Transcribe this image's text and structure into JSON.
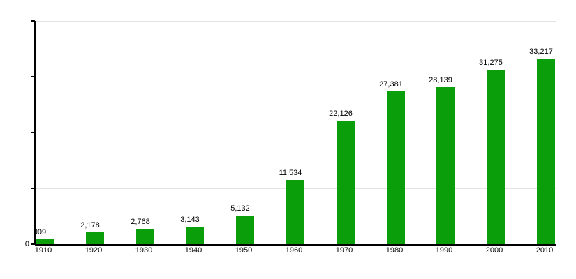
{
  "chart_data": {
    "type": "bar",
    "title": "",
    "categories": [
      "1910",
      "1920",
      "1930",
      "1940",
      "1950",
      "1960",
      "1970",
      "1980",
      "1990",
      "2000",
      "2010"
    ],
    "values": [
      909,
      2178,
      2768,
      3143,
      5132,
      11534,
      22126,
      27381,
      28139,
      31275,
      33217
    ],
    "value_labels": [
      "909",
      "2,178",
      "2,768",
      "3,143",
      "5,132",
      "11,534",
      "22,126",
      "27,381",
      "28,139",
      "31,275",
      "33,217"
    ],
    "xlabel": "",
    "ylabel": "",
    "ylim": [
      0,
      40000
    ],
    "y_zero_label": "0",
    "gridline_values": [
      10000,
      20000,
      30000,
      40000
    ],
    "grid": "horizontal",
    "legend_position": "none",
    "colors": {
      "bar": "#0a9e0a",
      "axis": "#000000",
      "gridline": "#e3e3e3",
      "text": "#000000",
      "background": "#ffffff"
    }
  }
}
